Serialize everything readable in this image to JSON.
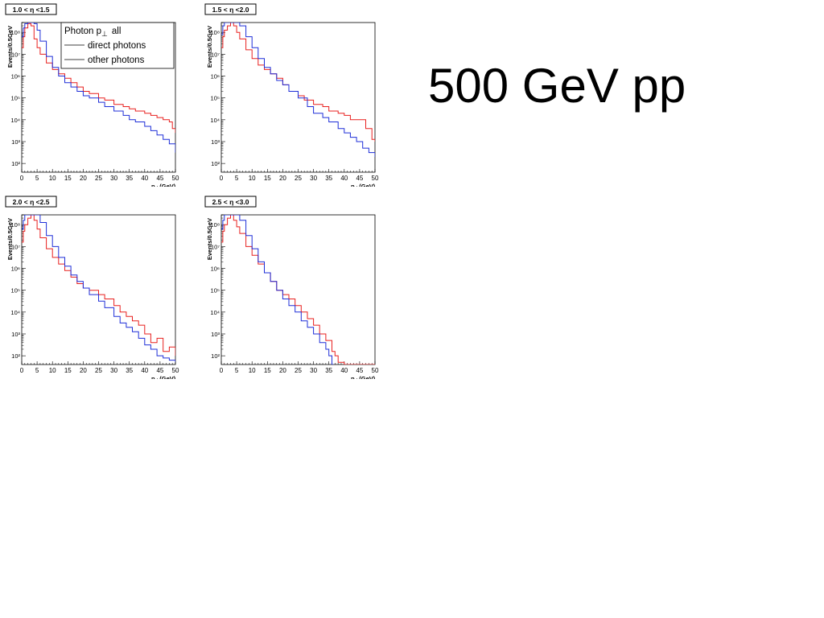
{
  "slide": {
    "title": "500 GeV pp"
  },
  "legend": {
    "title_main": "Photon p",
    "title_sub": "⊥",
    "title_tail": "all",
    "items": [
      {
        "label": "direct photons",
        "color": "#000000"
      },
      {
        "label": "other  photons",
        "color": "#000000"
      }
    ]
  },
  "colors": {
    "series_a": "#e8201f",
    "series_b": "#1f2fd8",
    "axis": "#000000"
  },
  "chart_data": [
    {
      "type": "line",
      "title": "1.0 < η <1.5",
      "xlabel_main": "p",
      "xlabel_sub": "⊥",
      "xlabel_unit": "(GeV)",
      "ylabel": "Events/0.5GeV",
      "xlim": [
        0,
        50
      ],
      "ylim_log10": [
        1.6,
        8.45
      ],
      "yscale": "log",
      "xticks": [
        0,
        5,
        10,
        15,
        20,
        25,
        30,
        35,
        40,
        45,
        50
      ],
      "yticks": [
        {
          "v": 2,
          "label": "10²"
        },
        {
          "v": 3,
          "label": "10³"
        },
        {
          "v": 4,
          "label": "10⁴"
        },
        {
          "v": 5,
          "label": "10⁵"
        },
        {
          "v": 6,
          "label": "10⁶"
        },
        {
          "v": 7,
          "label": "10⁷"
        },
        {
          "v": 8,
          "label": "10⁸"
        }
      ],
      "show_legend": true,
      "series": [
        {
          "color_key": "series_a",
          "x": [
            0,
            0.5,
            1,
            2,
            3,
            4,
            5,
            6,
            8,
            10,
            12,
            14,
            16,
            18,
            20,
            22,
            25,
            27,
            30,
            33,
            35,
            37,
            40,
            42,
            44,
            46,
            48,
            49,
            50
          ],
          "log10y": [
            7.3,
            7.8,
            8.2,
            8.4,
            8.3,
            7.7,
            7.3,
            7.0,
            6.6,
            6.3,
            6.1,
            5.9,
            5.7,
            5.5,
            5.3,
            5.2,
            5.0,
            4.9,
            4.7,
            4.6,
            4.5,
            4.4,
            4.3,
            4.2,
            4.1,
            4.0,
            3.9,
            3.6,
            3.4
          ]
        },
        {
          "color_key": "series_b",
          "x": [
            0,
            0.5,
            1,
            2,
            3,
            4,
            5,
            6,
            8,
            10,
            12,
            14,
            16,
            18,
            20,
            22,
            25,
            27,
            30,
            33,
            35,
            37,
            40,
            42,
            44,
            46,
            48,
            50
          ],
          "log10y": [
            7.8,
            8.2,
            8.4,
            8.45,
            8.45,
            8.4,
            8.1,
            7.6,
            6.9,
            6.4,
            6.0,
            5.7,
            5.5,
            5.3,
            5.1,
            5.0,
            4.8,
            4.6,
            4.4,
            4.2,
            4.0,
            3.9,
            3.7,
            3.5,
            3.3,
            3.1,
            2.9,
            2.5
          ]
        }
      ]
    },
    {
      "type": "line",
      "title": "1.5 < η <2.0",
      "xlabel_main": "p",
      "xlabel_sub": "⊥",
      "xlabel_unit": "(GeV)",
      "ylabel": "Events/0.5GeV",
      "xlim": [
        0,
        50
      ],
      "ylim_log10": [
        1.6,
        8.45
      ],
      "yscale": "log",
      "xticks": [
        0,
        5,
        10,
        15,
        20,
        25,
        30,
        35,
        40,
        45,
        50
      ],
      "yticks": [
        {
          "v": 2,
          "label": "10²"
        },
        {
          "v": 3,
          "label": "10³"
        },
        {
          "v": 4,
          "label": "10⁴"
        },
        {
          "v": 5,
          "label": "10⁵"
        },
        {
          "v": 6,
          "label": "10⁶"
        },
        {
          "v": 7,
          "label": "10⁷"
        },
        {
          "v": 8,
          "label": "10⁸"
        }
      ],
      "show_legend": false,
      "series": [
        {
          "color_key": "series_a",
          "x": [
            0,
            0.5,
            1,
            2,
            3,
            4,
            5,
            6,
            8,
            10,
            12,
            14,
            16,
            18,
            20,
            22,
            25,
            27,
            30,
            33,
            35,
            38,
            40,
            42,
            45,
            47,
            48,
            49,
            50
          ],
          "log10y": [
            7.3,
            7.8,
            8.1,
            8.3,
            8.45,
            8.3,
            8.0,
            7.7,
            7.2,
            6.8,
            6.5,
            6.3,
            6.1,
            5.9,
            5.6,
            5.3,
            5.1,
            4.9,
            4.7,
            4.6,
            4.4,
            4.3,
            4.2,
            4.0,
            4.0,
            3.6,
            3.6,
            3.1,
            3.0
          ]
        },
        {
          "color_key": "series_b",
          "x": [
            0,
            0.5,
            1,
            2,
            3,
            4,
            5,
            6,
            8,
            10,
            12,
            14,
            16,
            18,
            20,
            22,
            25,
            28,
            30,
            33,
            35,
            38,
            40,
            42,
            44,
            46,
            48,
            50
          ],
          "log10y": [
            7.9,
            8.3,
            8.45,
            8.45,
            8.45,
            8.45,
            8.45,
            8.3,
            7.8,
            7.3,
            6.8,
            6.4,
            6.1,
            5.8,
            5.6,
            5.3,
            5.0,
            4.6,
            4.3,
            4.1,
            3.9,
            3.6,
            3.4,
            3.2,
            3.0,
            2.7,
            2.5,
            2.3
          ]
        }
      ]
    },
    {
      "type": "line",
      "title": "2.0 < η <2.5",
      "xlabel_main": "p",
      "xlabel_sub": "⊥",
      "xlabel_unit": "(GeV)",
      "ylabel": "Events/0.5GeV",
      "xlim": [
        0,
        50
      ],
      "ylim_log10": [
        1.6,
        8.45
      ],
      "yscale": "log",
      "xticks": [
        0,
        5,
        10,
        15,
        20,
        25,
        30,
        35,
        40,
        45,
        50
      ],
      "yticks": [
        {
          "v": 2,
          "label": "10²"
        },
        {
          "v": 3,
          "label": "10³"
        },
        {
          "v": 4,
          "label": "10⁴"
        },
        {
          "v": 5,
          "label": "10⁵"
        },
        {
          "v": 6,
          "label": "10⁶"
        },
        {
          "v": 7,
          "label": "10⁷"
        },
        {
          "v": 8,
          "label": "10⁸"
        }
      ],
      "show_legend": false,
      "series": [
        {
          "color_key": "series_a",
          "x": [
            0,
            0.5,
            1,
            2,
            3,
            4,
            5,
            6,
            8,
            10,
            12,
            14,
            16,
            18,
            20,
            22,
            25,
            27,
            30,
            32,
            34,
            36,
            38,
            40,
            42,
            44,
            46,
            48,
            50
          ],
          "log10y": [
            7.2,
            7.7,
            8.0,
            8.3,
            8.45,
            8.2,
            7.8,
            7.4,
            6.9,
            6.5,
            6.2,
            5.9,
            5.6,
            5.3,
            5.1,
            5.0,
            4.8,
            4.6,
            4.3,
            4.0,
            3.8,
            3.6,
            3.4,
            3.0,
            2.6,
            2.8,
            2.2,
            2.4,
            2.0
          ]
        },
        {
          "color_key": "series_b",
          "x": [
            0,
            0.5,
            1,
            2,
            3,
            4,
            5,
            6,
            8,
            10,
            12,
            14,
            16,
            18,
            20,
            22,
            25,
            27,
            30,
            32,
            34,
            36,
            38,
            40,
            42,
            44,
            46,
            48,
            50
          ],
          "log10y": [
            7.8,
            8.2,
            8.45,
            8.45,
            8.45,
            8.45,
            8.45,
            8.1,
            7.5,
            7.0,
            6.5,
            6.1,
            5.7,
            5.4,
            5.1,
            4.8,
            4.5,
            4.2,
            3.8,
            3.5,
            3.3,
            3.1,
            2.8,
            2.5,
            2.3,
            2.0,
            1.9,
            1.8,
            1.7
          ]
        }
      ]
    },
    {
      "type": "line",
      "title": "2.5 < η <3.0",
      "xlabel_main": "p",
      "xlabel_sub": "⊥",
      "xlabel_unit": "(GeV)",
      "ylabel": "Events/0.5GeV",
      "xlim": [
        0,
        50
      ],
      "ylim_log10": [
        1.6,
        8.45
      ],
      "yscale": "log",
      "xticks": [
        0,
        5,
        10,
        15,
        20,
        25,
        30,
        35,
        40,
        45,
        50
      ],
      "yticks": [
        {
          "v": 2,
          "label": "10²"
        },
        {
          "v": 3,
          "label": "10³"
        },
        {
          "v": 4,
          "label": "10⁴"
        },
        {
          "v": 5,
          "label": "10⁵"
        },
        {
          "v": 6,
          "label": "10⁶"
        },
        {
          "v": 7,
          "label": "10⁷"
        },
        {
          "v": 8,
          "label": "10⁸"
        }
      ],
      "show_legend": false,
      "series": [
        {
          "color_key": "series_a",
          "x": [
            0,
            0.5,
            1,
            2,
            3,
            4,
            5,
            6,
            8,
            10,
            12,
            14,
            16,
            18,
            20,
            22,
            24,
            26,
            28,
            30,
            32,
            34,
            36,
            37,
            38,
            40,
            45,
            50
          ],
          "log10y": [
            7.2,
            7.7,
            8.0,
            8.3,
            8.45,
            8.2,
            7.9,
            7.6,
            7.0,
            6.6,
            6.2,
            5.8,
            5.4,
            5.0,
            4.8,
            4.6,
            4.3,
            4.0,
            3.7,
            3.4,
            3.0,
            2.7,
            2.2,
            2.0,
            1.7,
            1.6,
            1.6,
            1.6
          ]
        },
        {
          "color_key": "series_b",
          "x": [
            0,
            0.5,
            1,
            2,
            3,
            4,
            5,
            6,
            8,
            10,
            12,
            14,
            16,
            18,
            20,
            22,
            24,
            26,
            28,
            30,
            32,
            34,
            35,
            36
          ],
          "log10y": [
            7.8,
            8.2,
            8.45,
            8.45,
            8.45,
            8.45,
            8.45,
            8.2,
            7.5,
            6.9,
            6.3,
            5.8,
            5.4,
            5.0,
            4.6,
            4.3,
            4.0,
            3.6,
            3.3,
            3.0,
            2.6,
            2.3,
            2.0,
            1.6
          ]
        }
      ]
    }
  ]
}
